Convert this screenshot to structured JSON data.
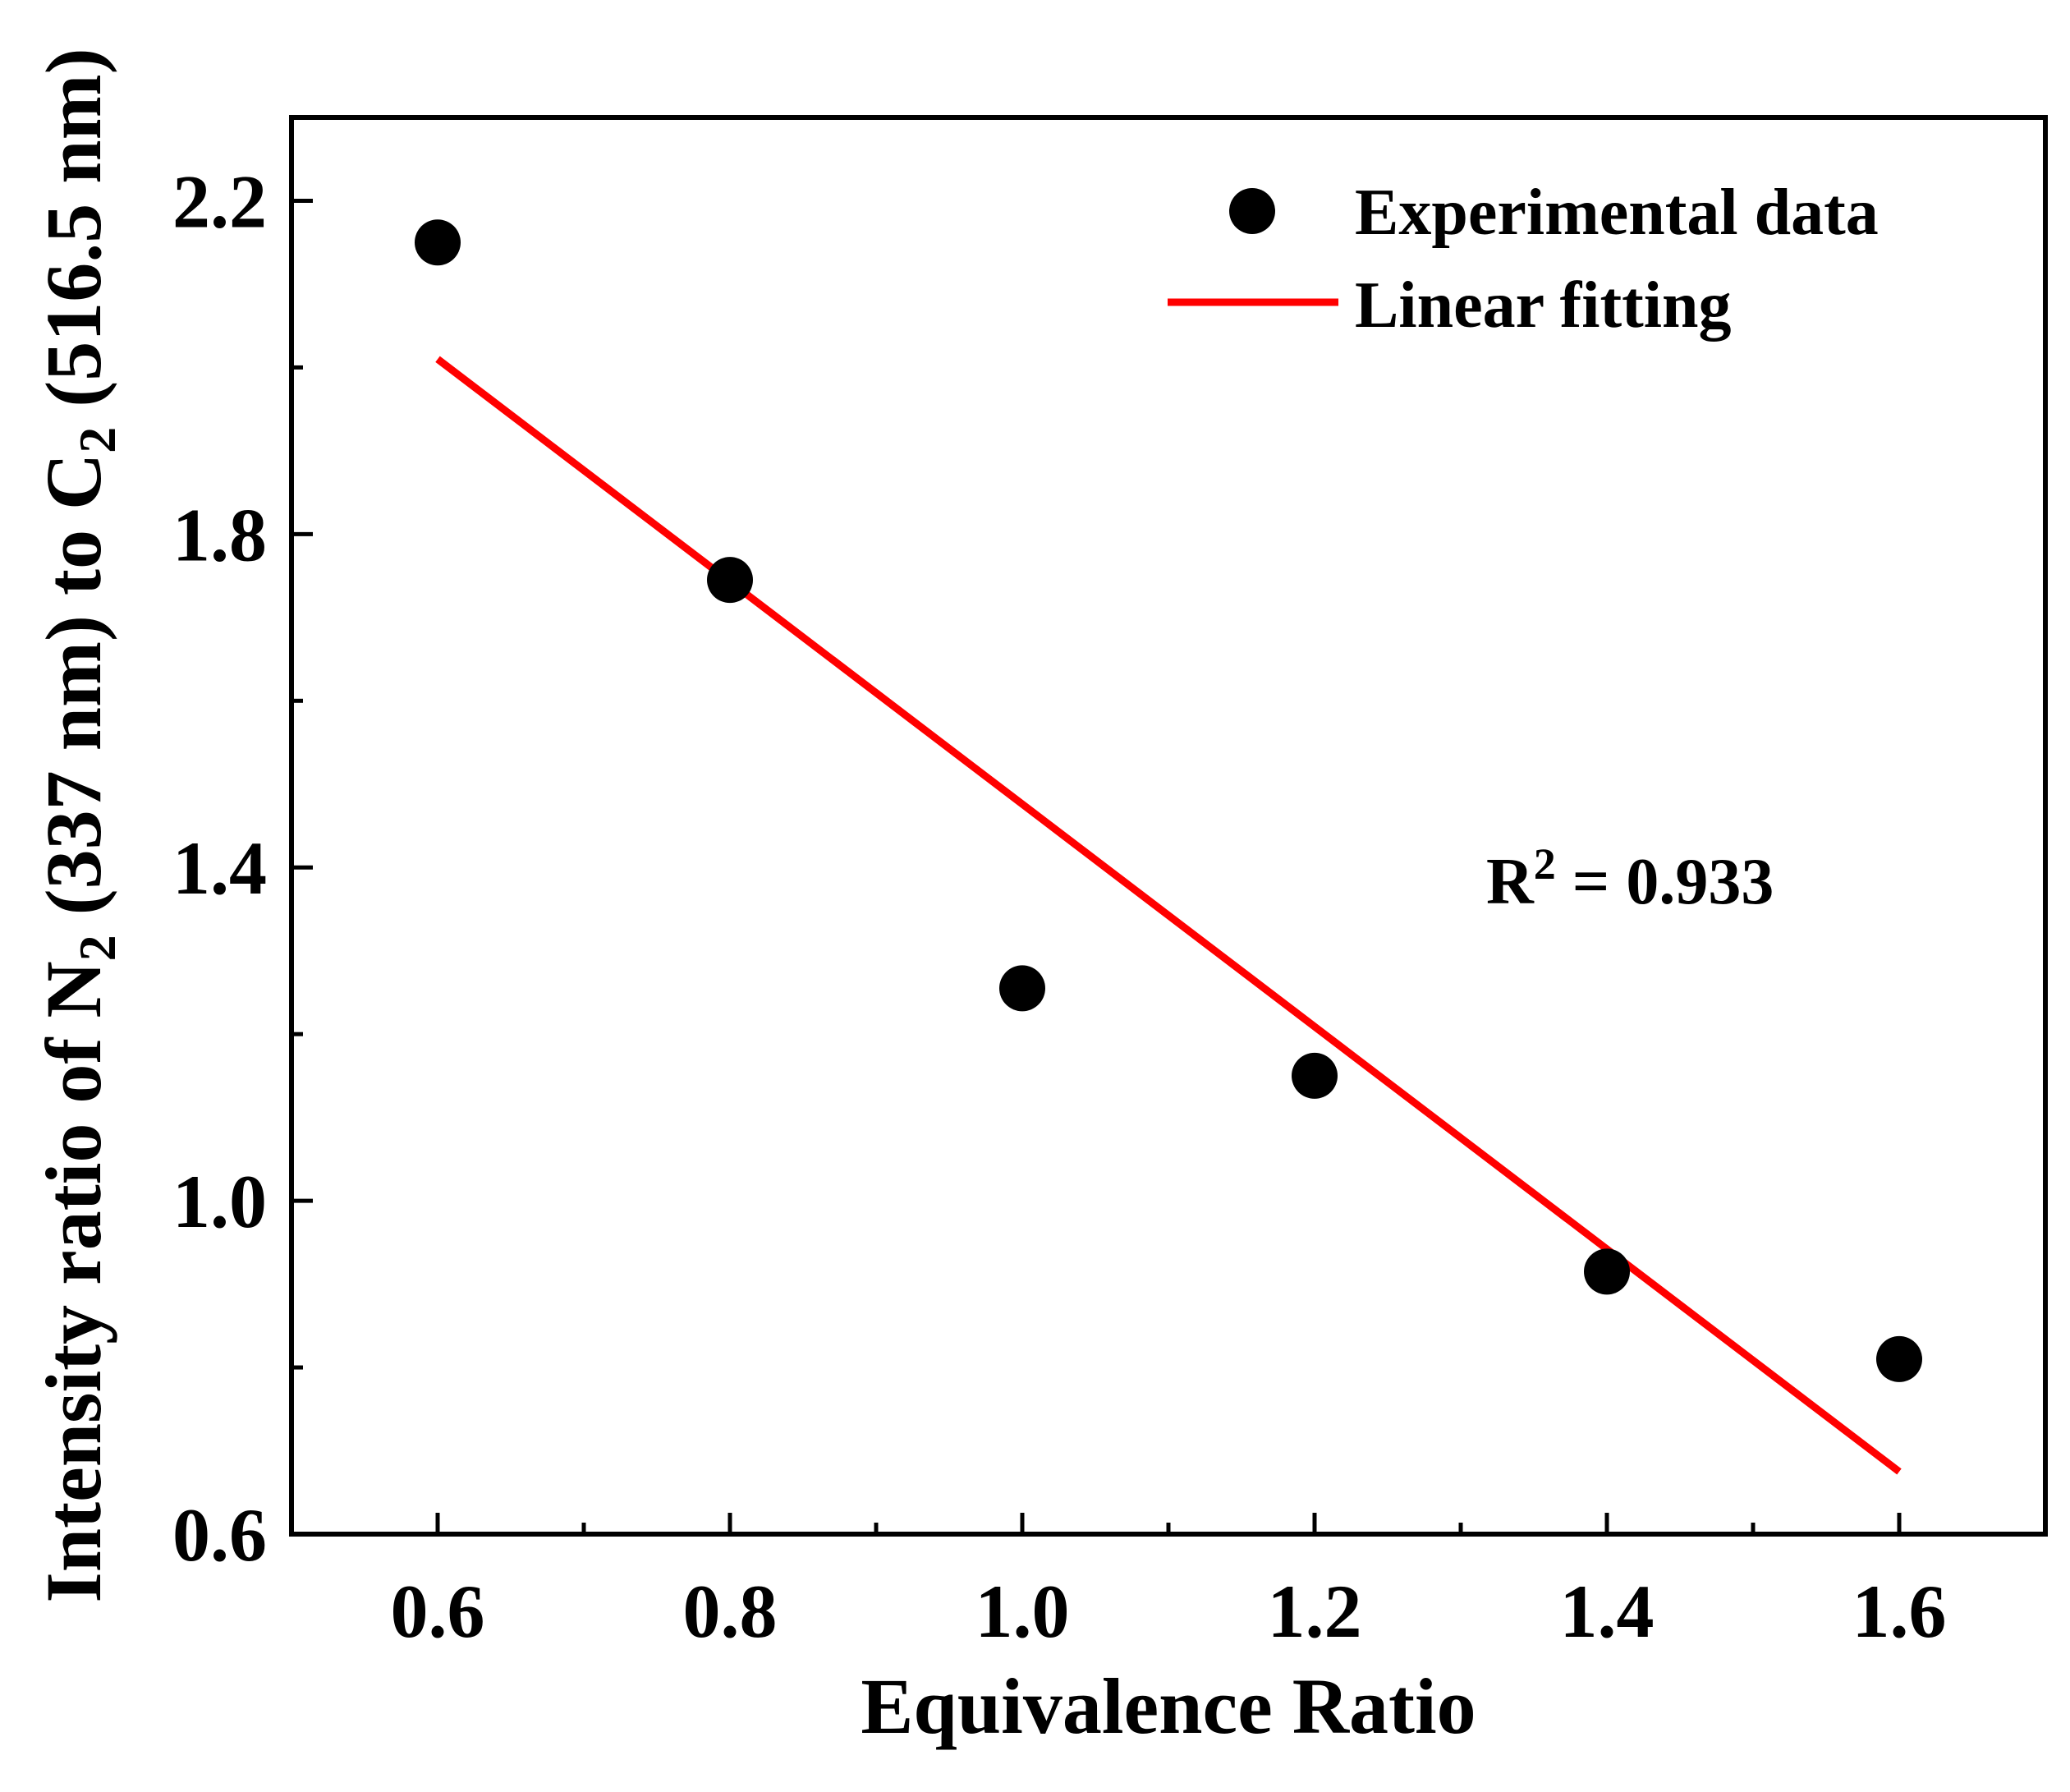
{
  "chart_data": {
    "type": "scatter",
    "title": "",
    "xlabel": "Equivalence Ratio",
    "ylabel": {
      "p1": "Intensity ratio of  N",
      "sub1": "2",
      "p2": " (337 nm) to C",
      "sub2": "2",
      "p3": " (516.5 nm)"
    },
    "xlim": [
      0.5,
      1.7
    ],
    "ylim": [
      0.6,
      2.3
    ],
    "xticks": [
      0.6,
      0.8,
      1.0,
      1.2,
      1.4,
      1.6
    ],
    "xtick_labels": [
      "0.6",
      "0.8",
      "1.0",
      "1.2",
      "1.4",
      "1.6"
    ],
    "x_minor_ticks": [
      0.7,
      0.9,
      1.1,
      1.3,
      1.5
    ],
    "yticks": [
      0.6,
      1.0,
      1.4,
      1.8,
      2.2
    ],
    "ytick_labels": [
      "0.6",
      "1.0",
      "1.4",
      "1.8",
      "2.2"
    ],
    "y_minor_ticks": [
      0.8,
      1.2,
      1.6,
      2.0
    ],
    "grid": false,
    "legend_position": "top-right",
    "series": [
      {
        "name": "Experimental data",
        "kind": "scatter",
        "color": "#000000",
        "x": [
          0.6,
          0.8,
          1.0,
          1.2,
          1.4,
          1.6
        ],
        "y": [
          2.15,
          1.745,
          1.255,
          1.15,
          0.915,
          0.81
        ]
      },
      {
        "name": "Linear fitting",
        "kind": "line",
        "color": "#ff0000",
        "x": [
          0.6,
          1.6
        ],
        "y": [
          2.01,
          0.675
        ]
      }
    ],
    "annotation": {
      "r_symbol": "R",
      "r_power": "2",
      "r_value_text": " = 0.933"
    }
  }
}
